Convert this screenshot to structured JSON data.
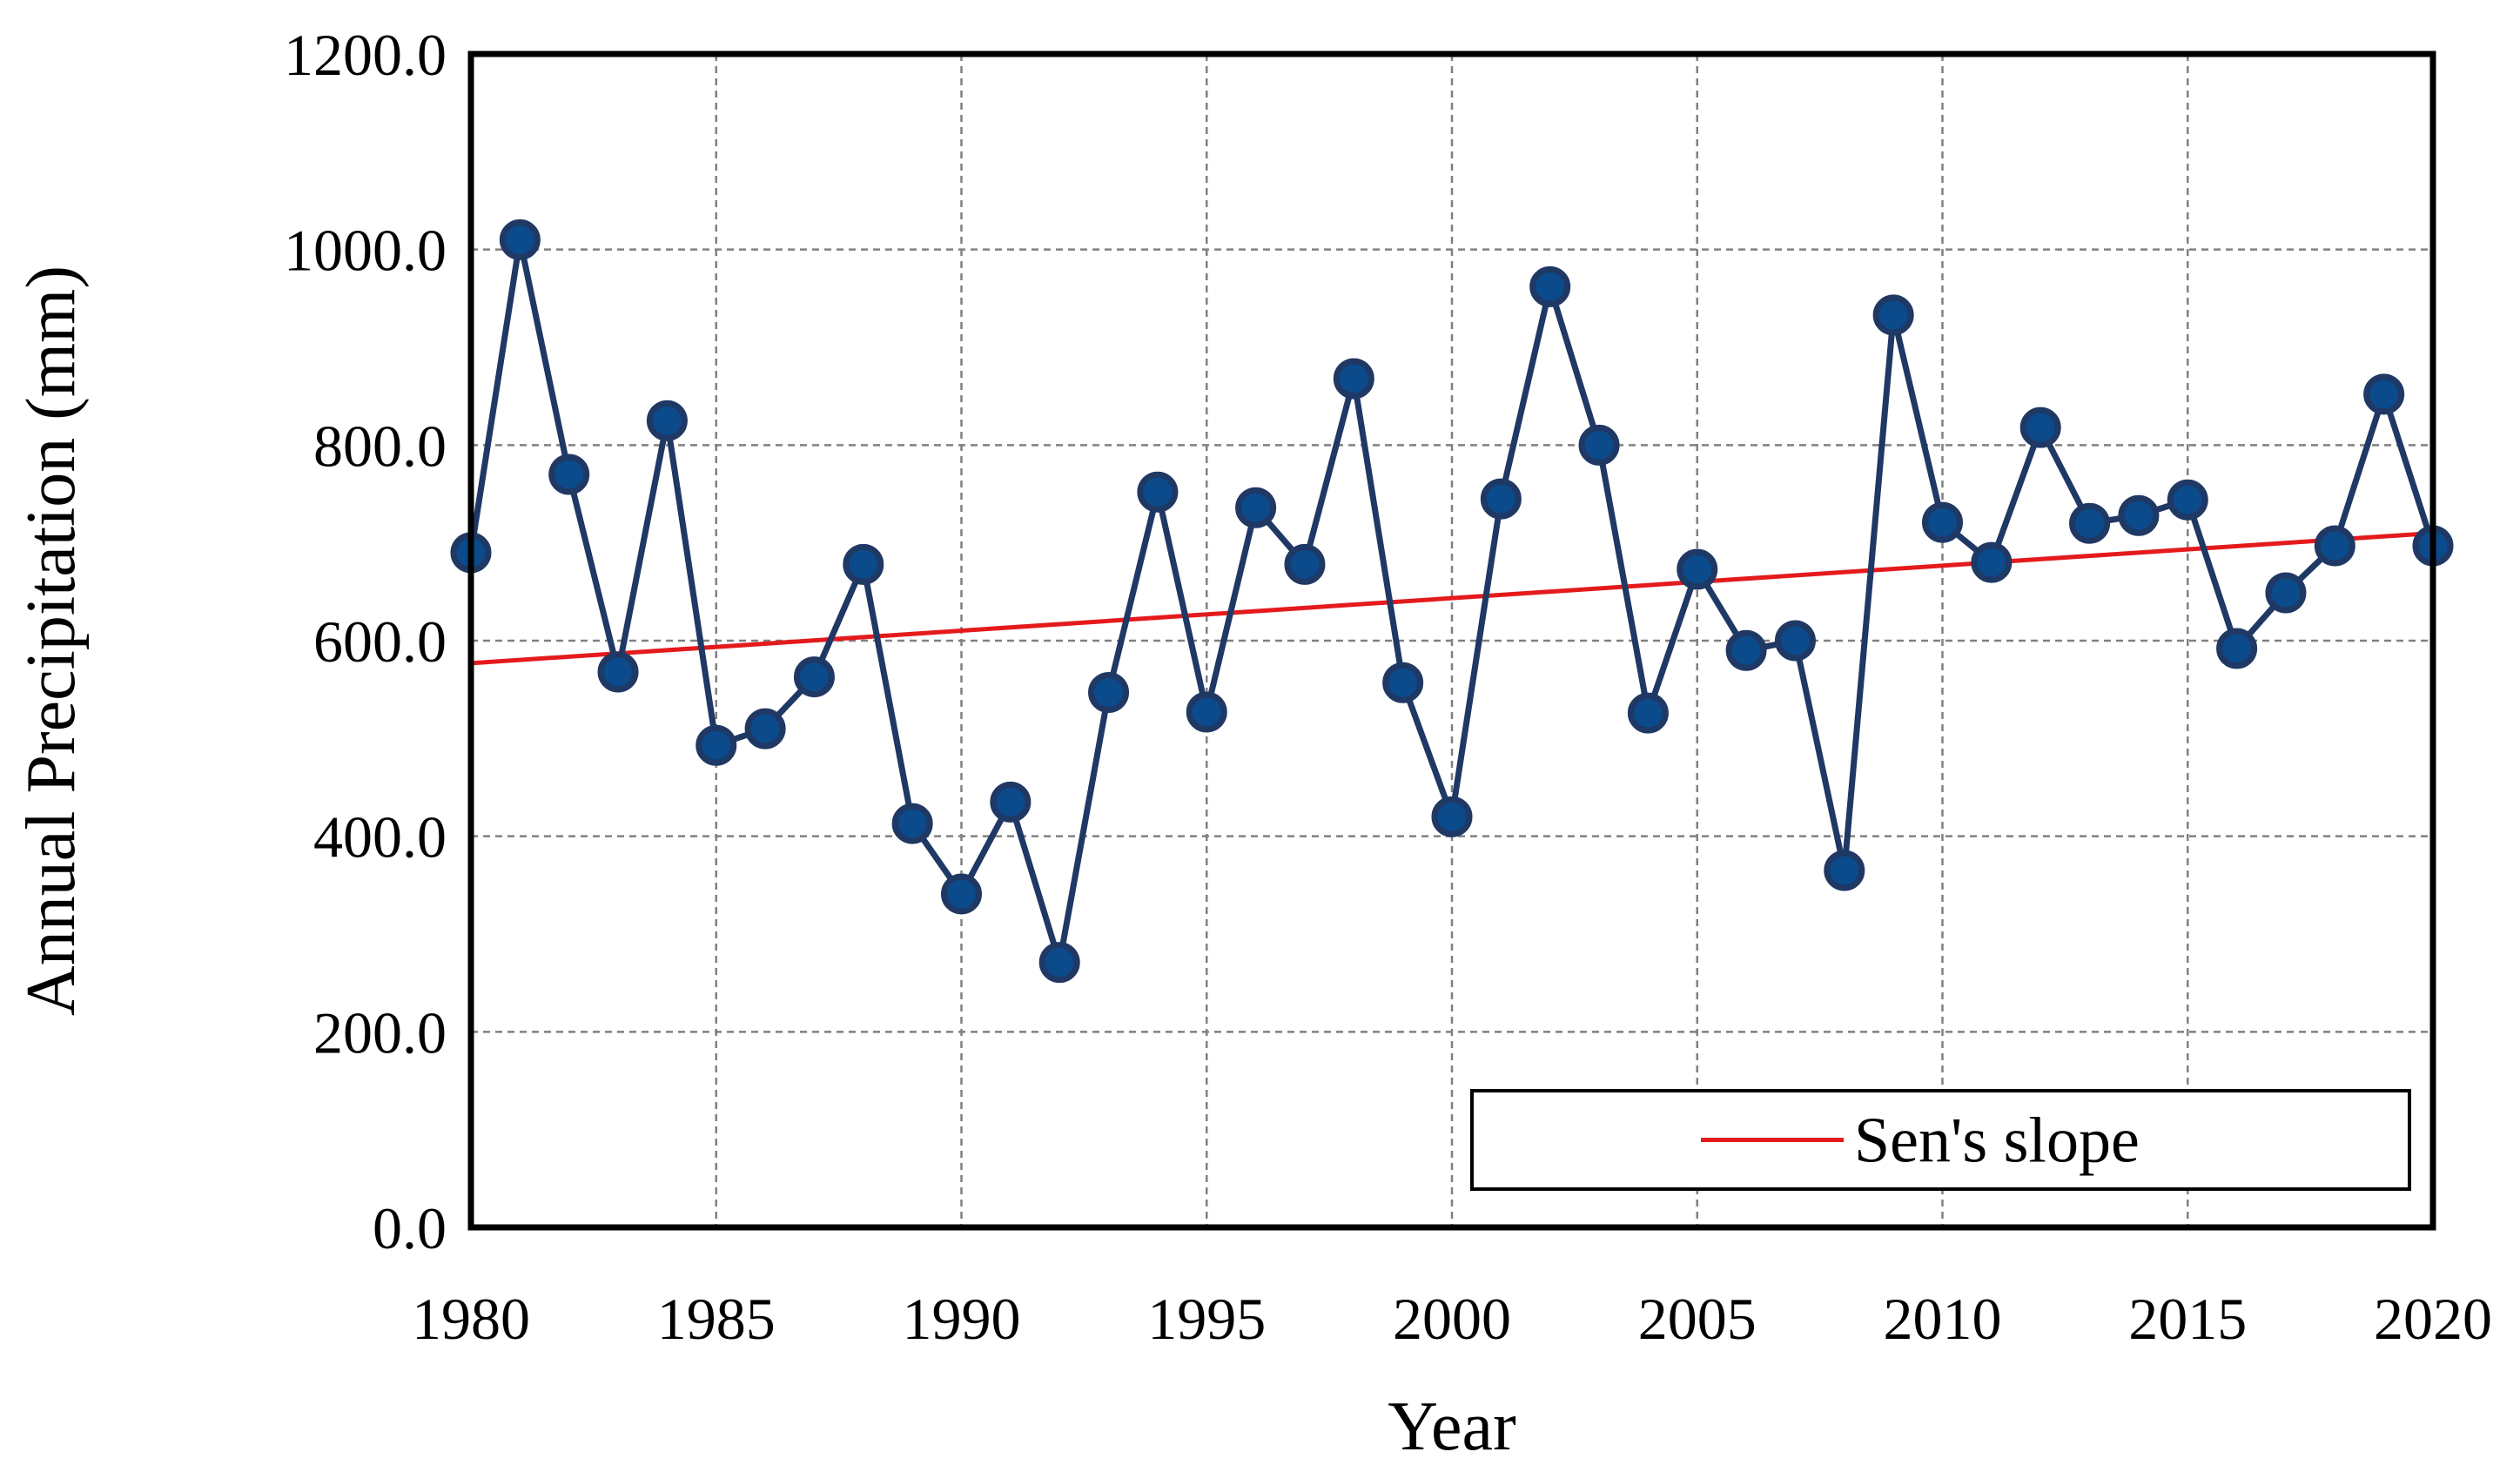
{
  "chart_data": {
    "type": "line",
    "title": "",
    "xlabel": "Year",
    "ylabel": "Annual Precipitation (mm)",
    "xlim": [
      1980,
      2020
    ],
    "ylim": [
      0,
      1200
    ],
    "x_ticks": [
      "1980",
      "1985",
      "1990",
      "1995",
      "2000",
      "2005",
      "2010",
      "2015",
      "2020"
    ],
    "y_ticks": [
      "0.0",
      "200.0",
      "400.0",
      "600.0",
      "800.0",
      "1000.0",
      "1200.0"
    ],
    "grid": true,
    "legend_position": "bottom-right",
    "series": [
      {
        "name": "Annual Precipitation",
        "color": "#1f3864",
        "marker_fill": "#0b4a8b",
        "x": [
          1980,
          1981,
          1982,
          1983,
          1984,
          1985,
          1986,
          1987,
          1988,
          1989,
          1990,
          1991,
          1992,
          1993,
          1994,
          1995,
          1996,
          1997,
          1998,
          1999,
          2000,
          2001,
          2002,
          2003,
          2004,
          2005,
          2006,
          2007,
          2008,
          2009,
          2010,
          2011,
          2012,
          2013,
          2014,
          2015,
          2016,
          2017,
          2018,
          2019,
          2020
        ],
        "values": [
          690,
          1010,
          770,
          568,
          825,
          493,
          510,
          563,
          678,
          413,
          341,
          435,
          271,
          547,
          752,
          527,
          736,
          678,
          868,
          557,
          420,
          745,
          962,
          800,
          526,
          673,
          590,
          600,
          365,
          933,
          721,
          680,
          818,
          720,
          728,
          744,
          592,
          649,
          697,
          852,
          697
        ]
      }
    ],
    "trend": {
      "name": "Sen's slope",
      "color": "#e41a1c",
      "x": [
        1980,
        2020
      ],
      "values": [
        577,
        710
      ]
    },
    "legend": {
      "entry": "Sen's slope"
    }
  }
}
